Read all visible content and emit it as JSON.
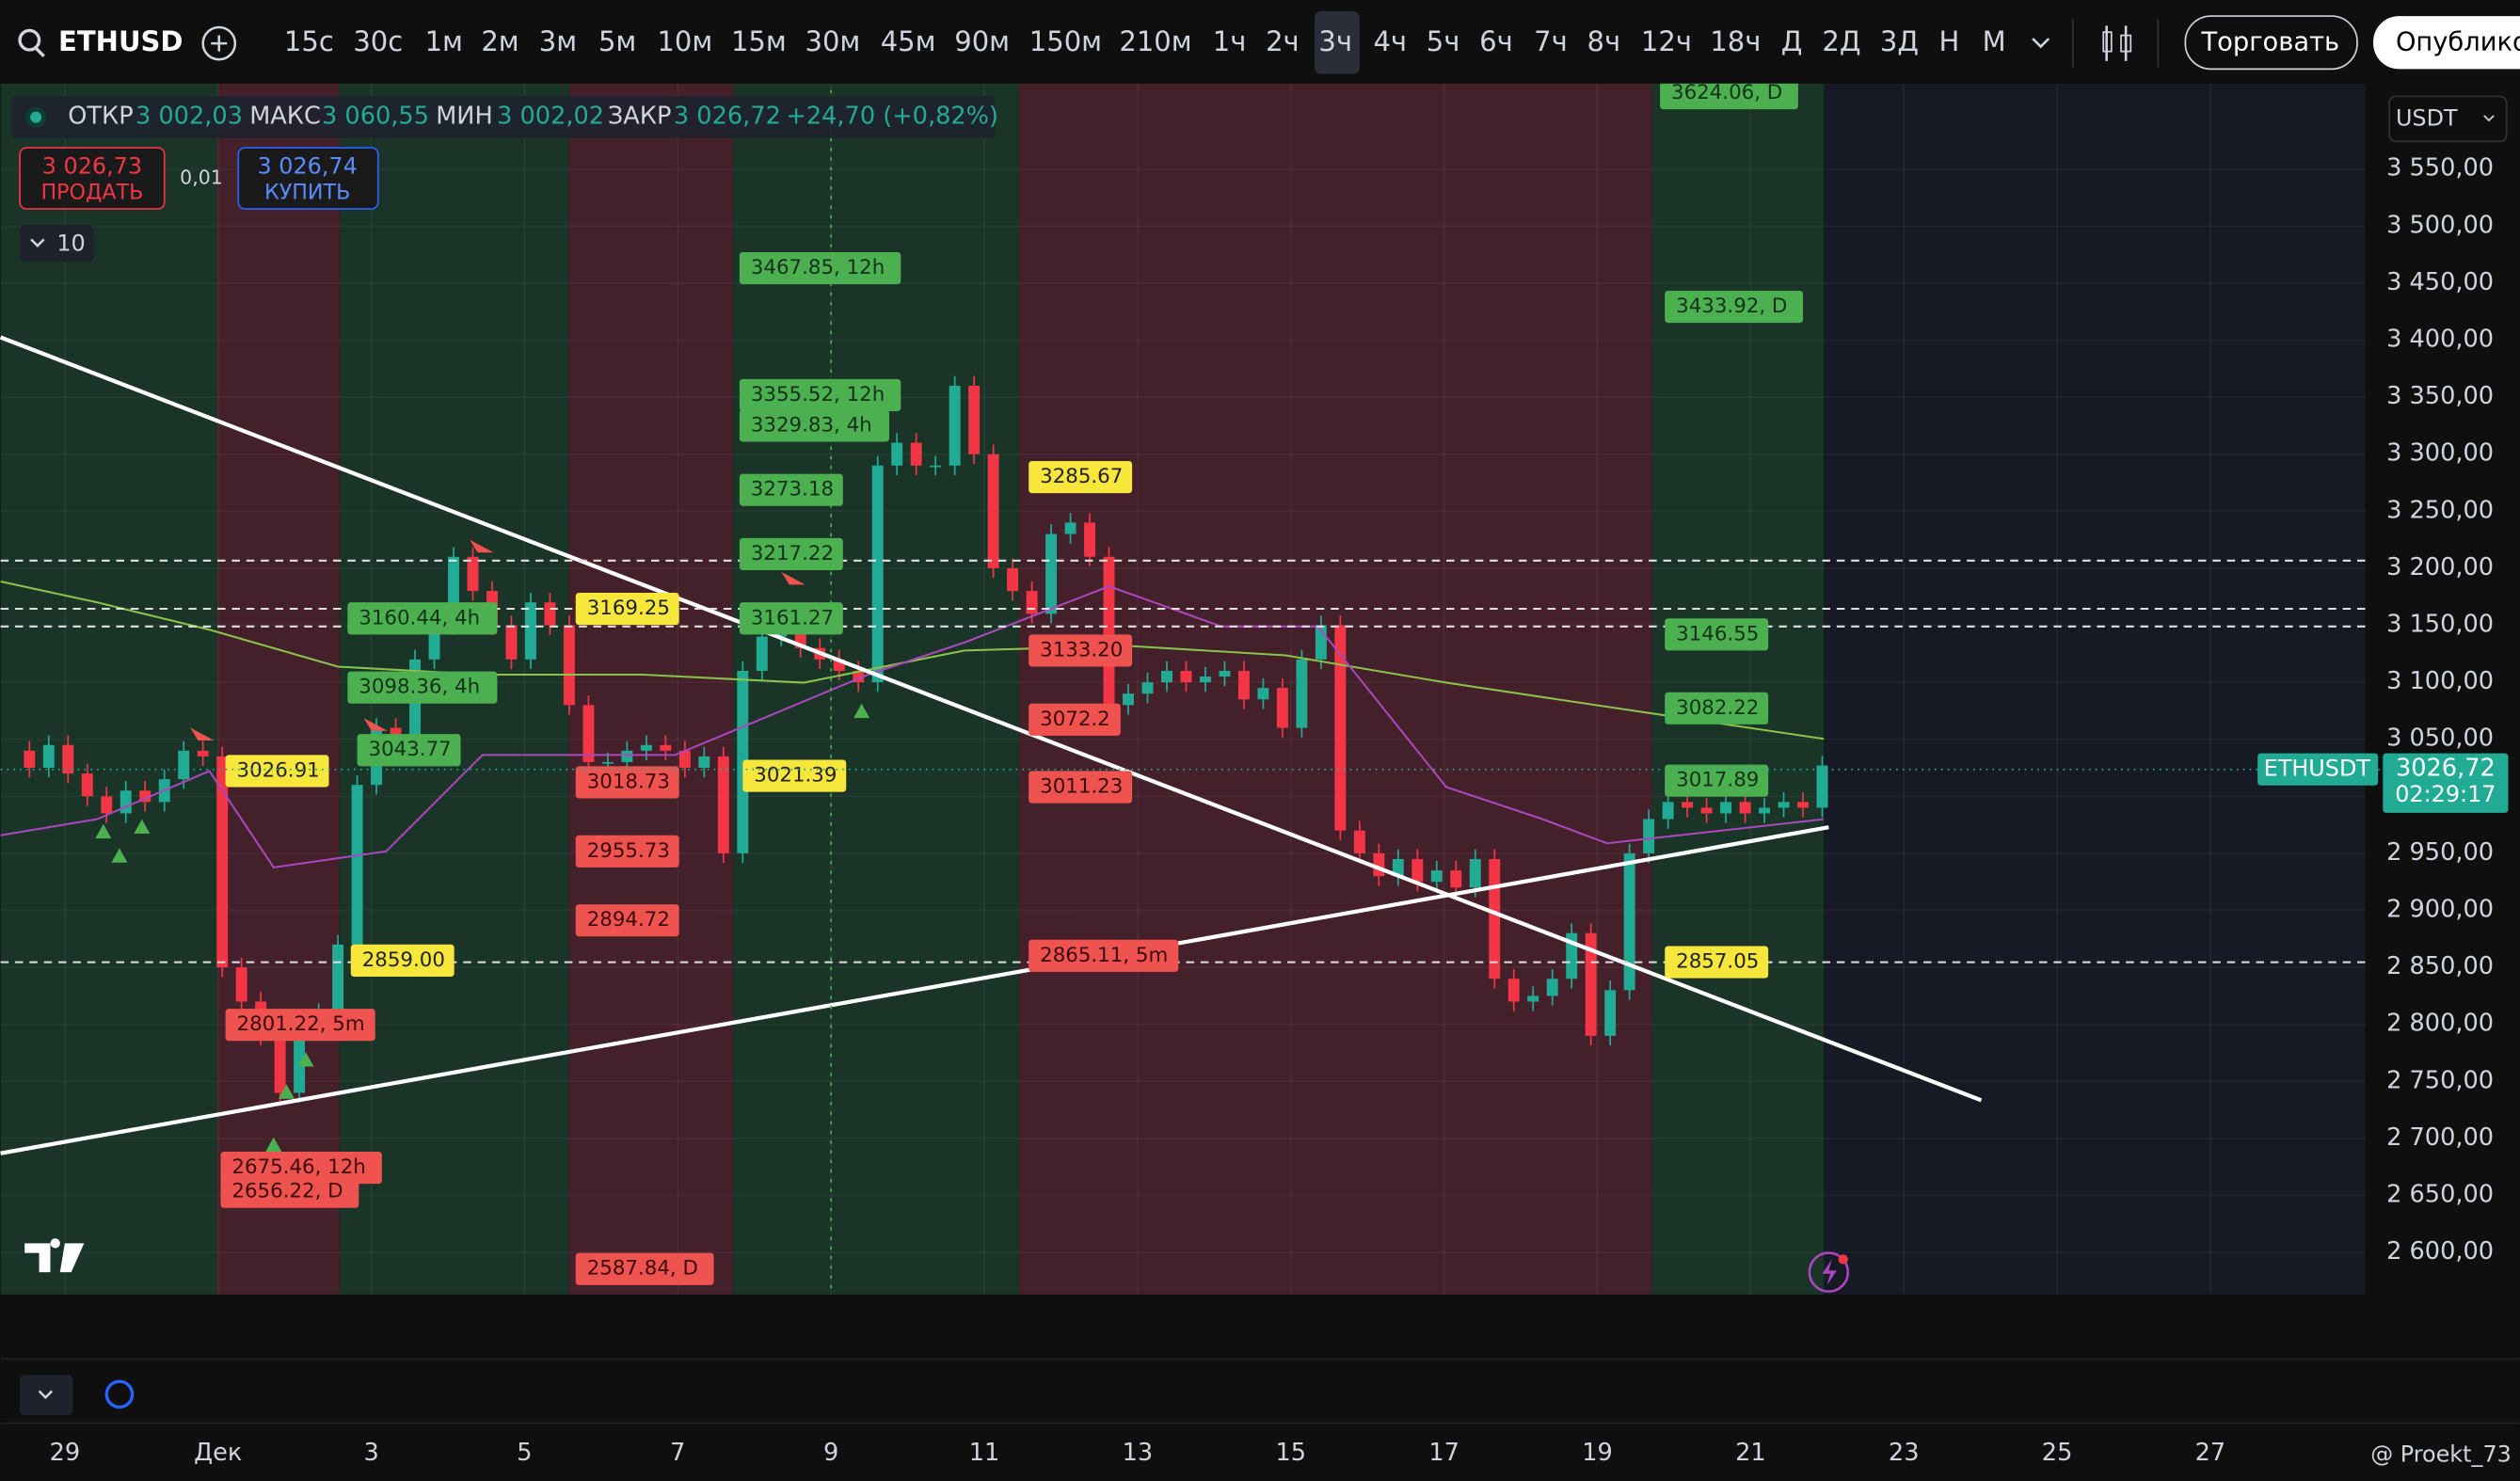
{
  "toolbar": {
    "symbol": "ETHUSD",
    "intervals": [
      "15с",
      "30с",
      "1м",
      "2м",
      "3м",
      "5м",
      "10м",
      "15м",
      "30м",
      "45м",
      "90м",
      "150м",
      "210м",
      "1ч",
      "2ч",
      "3ч",
      "4ч",
      "5ч",
      "6ч",
      "7ч",
      "8ч",
      "12ч",
      "18ч",
      "Д",
      "2Д",
      "3Д",
      "Н",
      "М"
    ],
    "trade_button": "Торговать",
    "publish_button": "Опублико"
  },
  "legend": {
    "open_label": "ОТКР",
    "open": "3 002,03",
    "high_label": "МАКС",
    "high": "3 060,55",
    "low_label": "МИН",
    "low": "3 002,02",
    "close_label": "ЗАКР",
    "close": "3 026,72",
    "change": "+24,70 (+0,82%)"
  },
  "order": {
    "sell_price": "3 026,73",
    "sell_label": "ПРОДАТЬ",
    "spread": "0,01",
    "buy_price": "3 026,74",
    "buy_label": "КУПИТЬ"
  },
  "indicator_count": 10,
  "currency": "USDT",
  "watermark": "@ Proekt_73",
  "chart_data": {
    "type": "candlestick",
    "closes": [
      3040,
      3025,
      3045,
      3020,
      3000,
      2985,
      3005,
      2995,
      3015,
      3040,
      3035,
      2850,
      2820,
      2790,
      2740,
      2800,
      2810,
      2870,
      3010,
      3060,
      3050,
      3120,
      3150,
      3210,
      3180,
      3150,
      3120,
      3170,
      3150,
      3080,
      3030,
      3030,
      3040,
      3045,
      3040,
      3025,
      3035,
      2950,
      3110,
      3140,
      3150,
      3130,
      3120,
      3110,
      3100,
      3290,
      3310,
      3290,
      3290,
      3360,
      3300,
      3200,
      3180,
      3160,
      3230,
      3240,
      3210,
      3080,
      3090,
      3100,
      3110,
      3100,
      3105,
      3110,
      3085,
      3095,
      3060,
      3120,
      3150,
      2970,
      2950,
      2930,
      2945,
      2925,
      2935,
      2920,
      2945,
      2840,
      2820,
      2825,
      2840,
      2880,
      2790,
      2830,
      2950,
      2980,
      2995,
      2990,
      2985,
      2995,
      2985,
      2990,
      2995,
      2990,
      3027
    ],
    "color_up": "#22ab94",
    "color_down": "#f23645",
    "grid": true,
    "ylim": [
      2563,
      3625
    ],
    "yticks": [
      {
        "value": 2600,
        "label": "2 600,00"
      },
      {
        "value": 2650,
        "label": "2 650,00"
      },
      {
        "value": 2700,
        "label": "2 700,00"
      },
      {
        "value": 2750,
        "label": "2 750,00"
      },
      {
        "value": 2800,
        "label": "2 800,00"
      },
      {
        "value": 2850,
        "label": "2 850,00"
      },
      {
        "value": 2900,
        "label": "2 900,00"
      },
      {
        "value": 2950,
        "label": "2 950,00"
      },
      {
        "value": 3000,
        "label": "3 000,00"
      },
      {
        "value": 3050,
        "label": "3 050,00"
      },
      {
        "value": 3100,
        "label": "3 100,00"
      },
      {
        "value": 3150,
        "label": "3 150,00"
      },
      {
        "value": 3200,
        "label": "3 200,00"
      },
      {
        "value": 3250,
        "label": "3 250,00"
      },
      {
        "value": 3300,
        "label": "3 300,00"
      },
      {
        "value": 3350,
        "label": "3 350,00"
      },
      {
        "value": 3400,
        "label": "3 400,00"
      },
      {
        "value": 3450,
        "label": "3 450,00"
      },
      {
        "value": 3500,
        "label": "3 500,00"
      },
      {
        "value": 3550,
        "label": "3 550,00"
      }
    ],
    "x_labels": [
      "29",
      "Дек",
      "3",
      "5",
      "7",
      "9",
      "11",
      "13",
      "15",
      "17",
      "19",
      "21",
      "23",
      "25",
      "27"
    ],
    "last_price": {
      "symbol": "ETHUSDT",
      "price": "3026,72",
      "countdown": "02:29:17"
    },
    "price_labels": [
      {
        "text": "3624.06, D",
        "color": "#4caf50"
      },
      {
        "text": "3467.85, 12h",
        "color": "#4caf50"
      },
      {
        "text": "3433.92, D",
        "color": "#4caf50"
      },
      {
        "text": "3355.52, 12h",
        "color": "#4caf50"
      },
      {
        "text": "3329.83, 4h",
        "color": "#4caf50"
      },
      {
        "text": "3285.67",
        "color": "#f7e63c"
      },
      {
        "text": "3273.18",
        "color": "#4caf50"
      },
      {
        "text": "3217.22",
        "color": "#4caf50"
      },
      {
        "text": "3169.25",
        "color": "#f7e63c"
      },
      {
        "text": "3160.44, 4h",
        "color": "#4caf50"
      },
      {
        "text": "3161.27",
        "color": "#4caf50"
      },
      {
        "text": "3146.55",
        "color": "#4caf50"
      },
      {
        "text": "3133.20",
        "color": "#ef5350"
      },
      {
        "text": "3098.36, 4h",
        "color": "#4caf50"
      },
      {
        "text": "3082.22",
        "color": "#4caf50"
      },
      {
        "text": "3072.2",
        "color": "#ef5350"
      },
      {
        "text": "3043.77",
        "color": "#4caf50"
      },
      {
        "text": "3026.91",
        "color": "#f7e63c"
      },
      {
        "text": "3021.39",
        "color": "#f7e63c"
      },
      {
        "text": "3018.73",
        "color": "#ef5350"
      },
      {
        "text": "3017.89",
        "color": "#4caf50"
      },
      {
        "text": "3011.23",
        "color": "#ef5350"
      },
      {
        "text": "2955.73",
        "color": "#ef5350"
      },
      {
        "text": "2894.72",
        "color": "#ef5350"
      },
      {
        "text": "2859.00",
        "color": "#f7e63c"
      },
      {
        "text": "2865.11, 5m",
        "color": "#ef5350"
      },
      {
        "text": "2857.05",
        "color": "#f7e63c"
      },
      {
        "text": "2801.22, 5m",
        "color": "#ef5350"
      },
      {
        "text": "2675.46, 12h",
        "color": "#ef5350"
      },
      {
        "text": "2656.22, D",
        "color": "#ef5350"
      },
      {
        "text": "2587.84, D",
        "color": "#ef5350"
      }
    ]
  }
}
